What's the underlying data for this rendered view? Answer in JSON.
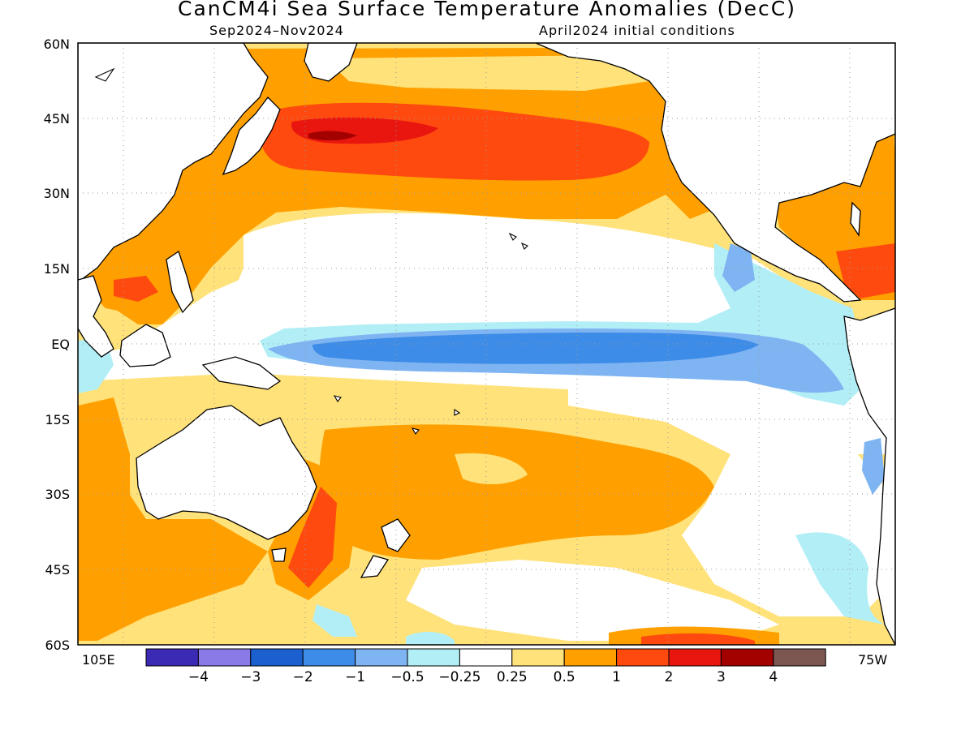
{
  "title": "CanCM4i Sea Surface Temperature Anomalies (DecC)",
  "subtitle_left": "Sep2024–Nov2024",
  "subtitle_right": "April2024 initial conditions",
  "lat_labels": [
    "60N",
    "45N",
    "30N",
    "15N",
    "EQ",
    "15S",
    "30S",
    "45S",
    "60S"
  ],
  "lon_labels": {
    "west_edge": "105E",
    "east_edge": "75W"
  },
  "colorbar": {
    "colors": [
      "#3b2bb4",
      "#8a7ae8",
      "#1c5fcf",
      "#3d8ce8",
      "#7fb4f2",
      "#b2eef6",
      "#ffffff",
      "#ffe27a",
      "#ffa000",
      "#ff4a0f",
      "#e8160f",
      "#a30000",
      "#7c5650"
    ],
    "labels": [
      "−4",
      "−3",
      "−2",
      "−1",
      "−0.5",
      "−0.25",
      "0.25",
      "0.5",
      "1",
      "2",
      "3",
      "4"
    ]
  },
  "field_colors": {
    "ocean_neutral": "#ffffff",
    "weak_warm": "#ffe27a",
    "warm": "#ffa000",
    "strong_warm": "#ff4a0f",
    "very_strong_warm": "#e8160f",
    "extreme_warm": "#a30000",
    "weak_cool": "#b2eef6",
    "cool": "#7fb4f2",
    "strong_cool": "#3d8ce8",
    "land": "#ffffff",
    "coastline": "#000000",
    "grid": "#9a9a9a"
  }
}
